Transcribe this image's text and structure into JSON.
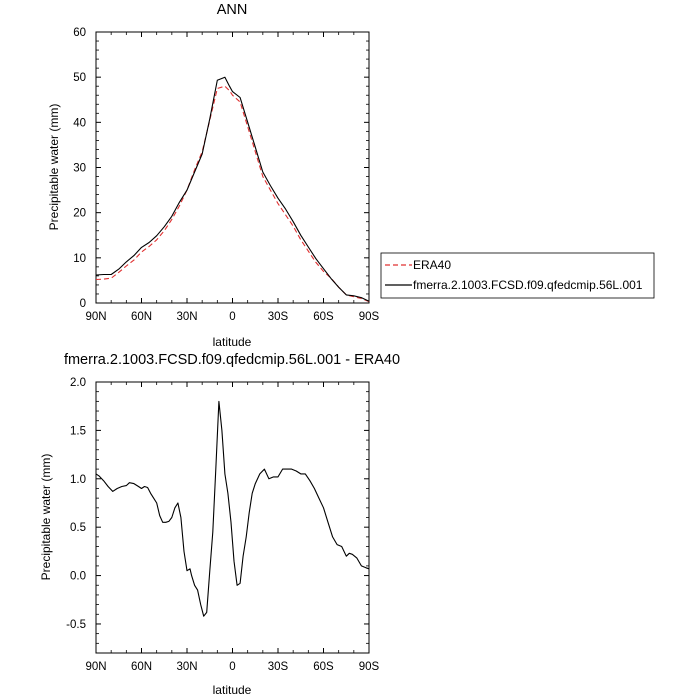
{
  "chart_data": [
    {
      "type": "line",
      "title": "ANN",
      "xlabel": "latitude",
      "ylabel": "Precipitable water (mm)",
      "xlim": [
        90,
        -90
      ],
      "ylim": [
        0,
        60
      ],
      "xticks": [
        90,
        60,
        30,
        0,
        -30,
        -60,
        -90
      ],
      "xtick_labels": [
        "90N",
        "60N",
        "30N",
        "0",
        "30S",
        "60S",
        "90S"
      ],
      "yticks": [
        0,
        10,
        20,
        30,
        40,
        50,
        60
      ],
      "ytick_labels": [
        "0",
        "10",
        "20",
        "30",
        "40",
        "50",
        "60"
      ],
      "legend_position": "right",
      "series": [
        {
          "name": "ERA40",
          "color": "#e03030",
          "dash": "dashed",
          "x": [
            90,
            85,
            80,
            75,
            70,
            65,
            60,
            55,
            50,
            45,
            40,
            35,
            30,
            25,
            20,
            15,
            10,
            5,
            2,
            0,
            -5,
            -10,
            -15,
            -20,
            -25,
            -30,
            -35,
            -40,
            -45,
            -50,
            -55,
            -60,
            -65,
            -70,
            -75,
            -80,
            -85,
            -90
          ],
          "y": [
            5.2,
            5.3,
            5.5,
            6.8,
            8.2,
            9.5,
            11.3,
            12.5,
            14.0,
            16.0,
            18.5,
            21.5,
            25.0,
            29.5,
            33.5,
            40.5,
            47.5,
            48.0,
            47.0,
            46.0,
            44.5,
            39.0,
            33.5,
            28.0,
            25.0,
            22.0,
            19.5,
            17.0,
            14.0,
            11.5,
            9.0,
            7.0,
            5.5,
            3.5,
            1.8,
            1.4,
            1.0,
            0.3
          ]
        },
        {
          "name": "fmerra.2.1003.FCSD.f09.qfedcmip.56L.001",
          "color": "#000000",
          "dash": "solid",
          "x": [
            90,
            85,
            80,
            75,
            70,
            65,
            60,
            55,
            50,
            45,
            40,
            35,
            30,
            25,
            20,
            15,
            10,
            5,
            2,
            0,
            -5,
            -10,
            -15,
            -20,
            -25,
            -30,
            -35,
            -40,
            -45,
            -50,
            -55,
            -60,
            -65,
            -70,
            -75,
            -80,
            -85,
            -90
          ],
          "y": [
            6.2,
            6.3,
            6.3,
            7.5,
            9.1,
            10.5,
            12.3,
            13.4,
            14.9,
            16.9,
            19.2,
            22.3,
            25.0,
            29.0,
            33.0,
            40.8,
            49.3,
            50.0,
            48.0,
            46.8,
            45.5,
            40.0,
            34.5,
            29.0,
            26.0,
            23.2,
            20.8,
            18.0,
            15.0,
            12.4,
            9.8,
            7.6,
            5.4,
            3.5,
            1.8,
            1.6,
            1.2,
            0.4
          ]
        }
      ]
    },
    {
      "type": "line",
      "title": "fmerra.2.1003.FCSD.f09.qfedcmip.56L.001 - ERA40",
      "xlabel": "latitude",
      "ylabel": "Precipitable water (mm)",
      "xlim": [
        90,
        -90
      ],
      "ylim": [
        -0.8,
        2.0
      ],
      "xticks": [
        90,
        60,
        30,
        0,
        -30,
        -60,
        -90
      ],
      "xtick_labels": [
        "90N",
        "60N",
        "30N",
        "0",
        "30S",
        "60S",
        "90S"
      ],
      "yticks": [
        -0.5,
        0.0,
        0.5,
        1.0,
        1.5,
        2.0
      ],
      "ytick_labels": [
        "-0.5",
        "0.0",
        "0.5",
        "1.0",
        "1.5",
        "2.0"
      ],
      "series": [
        {
          "color": "#000000",
          "dash": "solid",
          "x": [
            90,
            88,
            85,
            82,
            79,
            76,
            73,
            70,
            68,
            65,
            62,
            60,
            58,
            56,
            54,
            52,
            50,
            48,
            46,
            44,
            42,
            40,
            38,
            36,
            34,
            32,
            30,
            28,
            27,
            25,
            23,
            21,
            19,
            17,
            15,
            13,
            11,
            9,
            7,
            5,
            3,
            1,
            -1,
            -3,
            -5,
            -7,
            -9,
            -11,
            -13,
            -15,
            -18,
            -21,
            -24,
            -27,
            -30,
            -33,
            -36,
            -39,
            -42,
            -45,
            -48,
            -51,
            -54,
            -57,
            -60,
            -63,
            -66,
            -69,
            -72,
            -75,
            -77,
            -79,
            -82,
            -85,
            -88,
            -90
          ],
          "y": [
            1.05,
            1.03,
            0.98,
            0.92,
            0.87,
            0.9,
            0.92,
            0.93,
            0.96,
            0.95,
            0.92,
            0.9,
            0.92,
            0.91,
            0.85,
            0.8,
            0.75,
            0.62,
            0.55,
            0.55,
            0.56,
            0.6,
            0.7,
            0.75,
            0.6,
            0.25,
            0.05,
            0.07,
            0.0,
            -0.1,
            -0.15,
            -0.3,
            -0.42,
            -0.38,
            0.05,
            0.45,
            1.1,
            1.8,
            1.5,
            1.05,
            0.85,
            0.55,
            0.15,
            -0.1,
            -0.08,
            0.2,
            0.4,
            0.65,
            0.85,
            0.95,
            1.05,
            1.1,
            1.0,
            1.02,
            1.02,
            1.1,
            1.1,
            1.1,
            1.08,
            1.05,
            1.05,
            0.98,
            0.9,
            0.8,
            0.7,
            0.55,
            0.4,
            0.32,
            0.3,
            0.2,
            0.23,
            0.22,
            0.18,
            0.1,
            0.08,
            0.07
          ]
        }
      ]
    }
  ]
}
